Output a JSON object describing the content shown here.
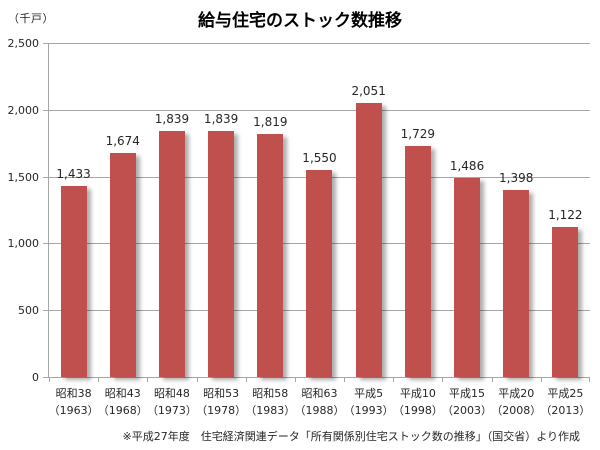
{
  "header": {
    "title": "給与住宅のストック数推移",
    "unit_label": "（千戸）"
  },
  "footer": {
    "source_note": "※平成27年度　住宅経済関連データ「所有関係別住宅ストック数の推移」（国交省）より作成"
  },
  "chart_data": {
    "type": "bar",
    "title": "給与住宅のストック数推移",
    "ylabel": "（千戸）",
    "categories": [
      {
        "era": "昭和38",
        "year": "（1963）"
      },
      {
        "era": "昭和43",
        "year": "（1968）"
      },
      {
        "era": "昭和48",
        "year": "（1973）"
      },
      {
        "era": "昭和53",
        "year": "（1978）"
      },
      {
        "era": "昭和58",
        "year": "（1983）"
      },
      {
        "era": "昭和63",
        "year": "（1988）"
      },
      {
        "era": "平成5",
        "year": "（1993）"
      },
      {
        "era": "平成10",
        "year": "（1998）"
      },
      {
        "era": "平成15",
        "year": "（2003）"
      },
      {
        "era": "平成20",
        "year": "（2008）"
      },
      {
        "era": "平成25",
        "year": "（2013）"
      }
    ],
    "values": [
      1433,
      1674,
      1839,
      1839,
      1819,
      1550,
      2051,
      1729,
      1486,
      1398,
      1122
    ],
    "value_labels": [
      "1,433",
      "1,674",
      "1,839",
      "1,839",
      "1,819",
      "1,550",
      "2,051",
      "1,729",
      "1,486",
      "1,398",
      "1,122"
    ],
    "ylim": [
      0,
      2500
    ],
    "ytick_values": [
      0,
      500,
      1000,
      1500,
      2000,
      2500
    ],
    "ytick_labels": [
      "0",
      "500",
      "1,000",
      "1,500",
      "2,000",
      "2,500"
    ],
    "grid": true,
    "legend_position": "none",
    "bar_color": "#c0504d",
    "gridline_color": "#a6a6a6",
    "label_color": "#262626"
  }
}
